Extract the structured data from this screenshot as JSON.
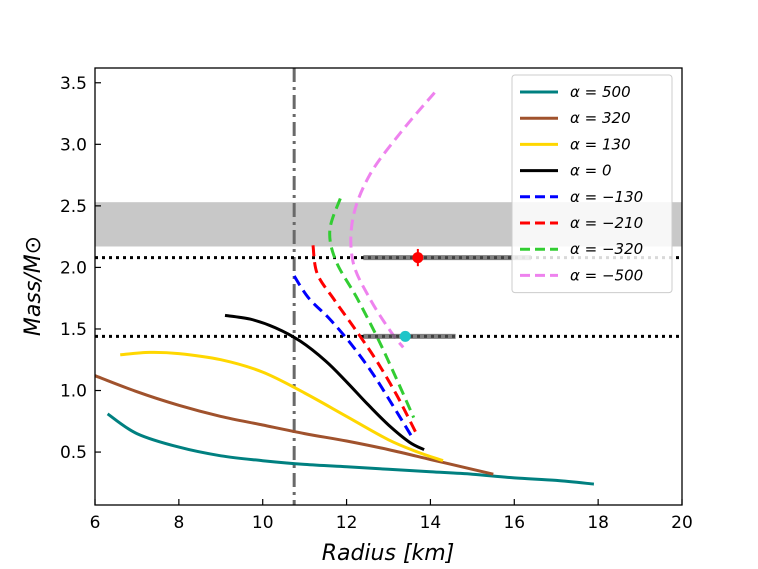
{
  "chart_data": {
    "type": "line",
    "xlabel": "Radius [km]",
    "ylabel": "Mass/M⊙",
    "xlim": [
      6,
      20
    ],
    "ylim": [
      0.07,
      3.62
    ],
    "xticks": [
      6,
      8,
      10,
      12,
      14,
      16,
      18,
      20
    ],
    "yticks": [
      0.5,
      1.0,
      1.5,
      2.0,
      2.5,
      3.0,
      3.5
    ],
    "xtick_labels": [
      "6",
      "8",
      "10",
      "12",
      "14",
      "16",
      "18",
      "20"
    ],
    "ytick_labels": [
      "0.5",
      "1.0",
      "1.5",
      "2.0",
      "2.5",
      "3.0",
      "3.5"
    ],
    "legend_position": "top-right",
    "series": [
      {
        "name": "α = 500",
        "color": "#008080",
        "style": "solid",
        "x": [
          6.3,
          7.0,
          8.0,
          9.0,
          10.0,
          11.0,
          12.0,
          13.0,
          14.0,
          15.0,
          16.0,
          17.0,
          17.9
        ],
        "y": [
          0.81,
          0.65,
          0.54,
          0.47,
          0.43,
          0.4,
          0.38,
          0.36,
          0.34,
          0.32,
          0.29,
          0.27,
          0.24
        ]
      },
      {
        "name": "α = 320",
        "color": "#a0522d",
        "style": "solid",
        "x": [
          6.0,
          7.0,
          8.0,
          9.0,
          10.0,
          11.0,
          12.0,
          13.0,
          14.0,
          15.0,
          15.5
        ],
        "y": [
          1.12,
          0.99,
          0.88,
          0.79,
          0.72,
          0.65,
          0.59,
          0.52,
          0.44,
          0.36,
          0.32
        ]
      },
      {
        "name": "α = 130",
        "color": "#ffd700",
        "style": "solid",
        "x": [
          6.6,
          7.3,
          8.0,
          9.0,
          10.0,
          11.0,
          12.0,
          13.0,
          13.7,
          14.3
        ],
        "y": [
          1.29,
          1.31,
          1.3,
          1.25,
          1.15,
          0.98,
          0.79,
          0.6,
          0.5,
          0.43
        ]
      },
      {
        "name": "α = 0",
        "color": "#000000",
        "style": "solid",
        "x": [
          9.1,
          9.7,
          10.3,
          10.9,
          11.5,
          12.0,
          12.5,
          13.0,
          13.5,
          13.85
        ],
        "y": [
          1.61,
          1.58,
          1.51,
          1.4,
          1.24,
          1.07,
          0.89,
          0.72,
          0.58,
          0.52
        ]
      },
      {
        "name": "α = −130",
        "color": "#0000ff",
        "style": "dashed",
        "x": [
          10.75,
          11.1,
          11.6,
          12.1,
          12.6,
          13.1,
          13.6
        ],
        "y": [
          1.93,
          1.75,
          1.58,
          1.38,
          1.15,
          0.88,
          0.6
        ]
      },
      {
        "name": "α = −210",
        "color": "#ff0000",
        "style": "dashed",
        "x": [
          11.2,
          11.3,
          11.7,
          12.2,
          12.7,
          13.2,
          13.65
        ],
        "y": [
          2.18,
          1.95,
          1.74,
          1.5,
          1.25,
          0.96,
          0.66
        ]
      },
      {
        "name": "α = −320",
        "color": "#32cd32",
        "style": "dashed",
        "x": [
          11.85,
          11.6,
          11.75,
          12.25,
          12.75,
          13.25,
          13.6
        ],
        "y": [
          2.56,
          2.3,
          2.05,
          1.75,
          1.42,
          1.05,
          0.78
        ]
      },
      {
        "name": "α = −500",
        "color": "#ee82ee",
        "style": "dashed",
        "x": [
          14.1,
          13.3,
          12.55,
          12.15,
          12.15,
          12.55,
          13.05,
          13.35
        ],
        "y": [
          3.42,
          3.1,
          2.75,
          2.4,
          2.05,
          1.75,
          1.48,
          1.35
        ]
      }
    ],
    "reference_lines": [
      {
        "orientation": "vertical",
        "x": 10.75,
        "style": "dashdot",
        "color": "#696969"
      },
      {
        "orientation": "horizontal",
        "y": 2.08,
        "style": "dotted",
        "color": "#000000"
      },
      {
        "orientation": "horizontal",
        "y": 1.44,
        "style": "dotted",
        "color": "#000000"
      }
    ],
    "shaded_band": {
      "y_min": 2.17,
      "y_max": 2.53,
      "color": "#c8c8c8"
    },
    "measurements": [
      {
        "x": 13.7,
        "y": 2.08,
        "xerr_low": 13.7,
        "xerr_high": 14.6,
        "yerr": 0.07,
        "color": "#ff0000",
        "band_x": [
          12.4,
          16.4
        ]
      },
      {
        "x": 13.4,
        "y": 1.44,
        "xerr_low": 12.4,
        "xerr_high": 14.6,
        "yerr": 0.0,
        "color": "#1fc5c8",
        "band_x": [
          12.4,
          14.6
        ]
      }
    ]
  }
}
